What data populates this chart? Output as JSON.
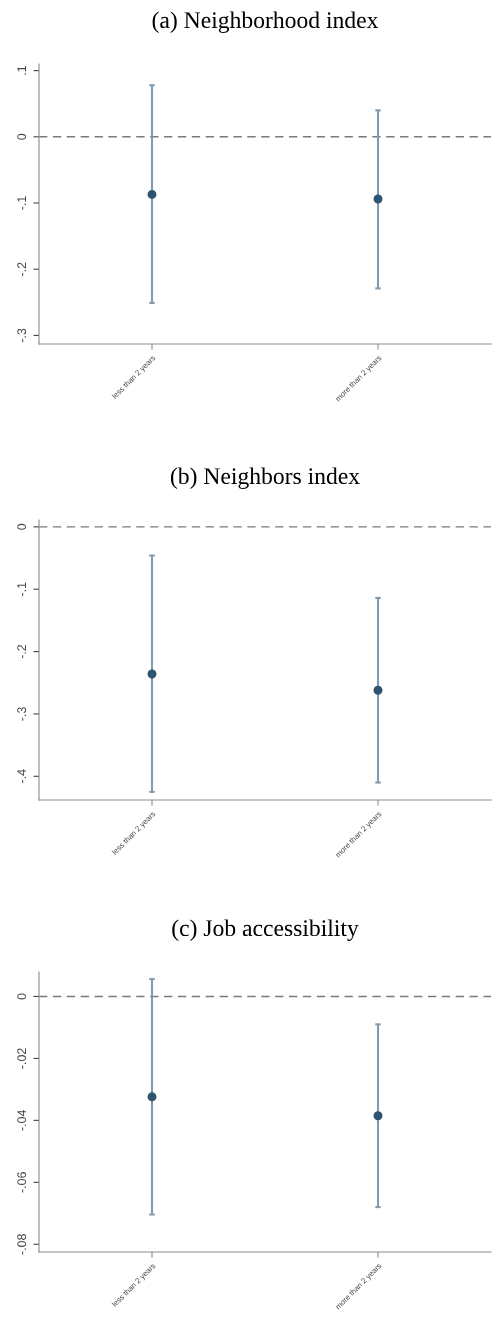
{
  "chart_data": [
    {
      "type": "scatter",
      "title": "(a) Neighborhood index",
      "categories": [
        "less than 2 years",
        "more than 2 years"
      ],
      "series": [
        {
          "color": "#2f5470",
          "values": [
            -0.087,
            -0.094
          ],
          "errors": [
            [
              -0.251,
              0.078
            ],
            [
              -0.229,
              0.04
            ]
          ]
        }
      ],
      "ylim": [
        -0.313,
        0.11
      ],
      "yticks": [
        {
          "value": -0.3,
          "label": "-.3"
        },
        {
          "value": -0.2,
          "label": "-.2"
        },
        {
          "value": -0.1,
          "label": "-.1"
        },
        0,
        {
          "value": 0.1,
          "label": ".1"
        }
      ],
      "ref_lines": [
        {
          "axis": "y",
          "value": 0,
          "label": null,
          "color": "#7a7a7a",
          "line_style": "dashed"
        }
      ],
      "marker": "circle",
      "grid": false,
      "legend": false
    },
    {
      "type": "scatter",
      "title": "(b) Neighbors index",
      "categories": [
        "less than 2 years",
        "more than 2 years"
      ],
      "series": [
        {
          "color": "#2f5470",
          "values": [
            -0.236,
            -0.262
          ],
          "errors": [
            [
              -0.425,
              -0.046
            ],
            [
              -0.41,
              -0.114
            ]
          ]
        }
      ],
      "ylim": [
        -0.438,
        0.011
      ],
      "yticks": [
        {
          "value": -0.4,
          "label": "-.4"
        },
        {
          "value": -0.3,
          "label": "-.3"
        },
        {
          "value": -0.2,
          "label": "-.2"
        },
        {
          "value": -0.1,
          "label": "-.1"
        },
        0
      ],
      "ref_lines": [
        {
          "axis": "y",
          "value": 0,
          "label": null,
          "color": "#7a7a7a",
          "line_style": "dashed"
        }
      ],
      "marker": "circle",
      "grid": false,
      "legend": false
    },
    {
      "type": "scatter",
      "title": "(c) Job accessibility",
      "categories": [
        "less than 2 years",
        "more than 2 years"
      ],
      "series": [
        {
          "color": "#2f5470",
          "values": [
            -0.0324,
            -0.0385
          ],
          "errors": [
            [
              -0.0704,
              0.0056
            ],
            [
              -0.068,
              -0.009
            ]
          ]
        }
      ],
      "ylim": [
        -0.0825,
        0.0079
      ],
      "yticks": [
        {
          "value": -0.08,
          "label": "-.08"
        },
        {
          "value": -0.06,
          "label": "-.06"
        },
        {
          "value": -0.04,
          "label": "-.04"
        },
        {
          "value": -0.02,
          "label": "-.02"
        },
        0
      ],
      "ref_lines": [
        {
          "axis": "y",
          "value": 0,
          "label": null,
          "color": "#7a7a7a",
          "line_style": "dashed"
        }
      ],
      "marker": "circle",
      "grid": false,
      "legend": false
    }
  ]
}
